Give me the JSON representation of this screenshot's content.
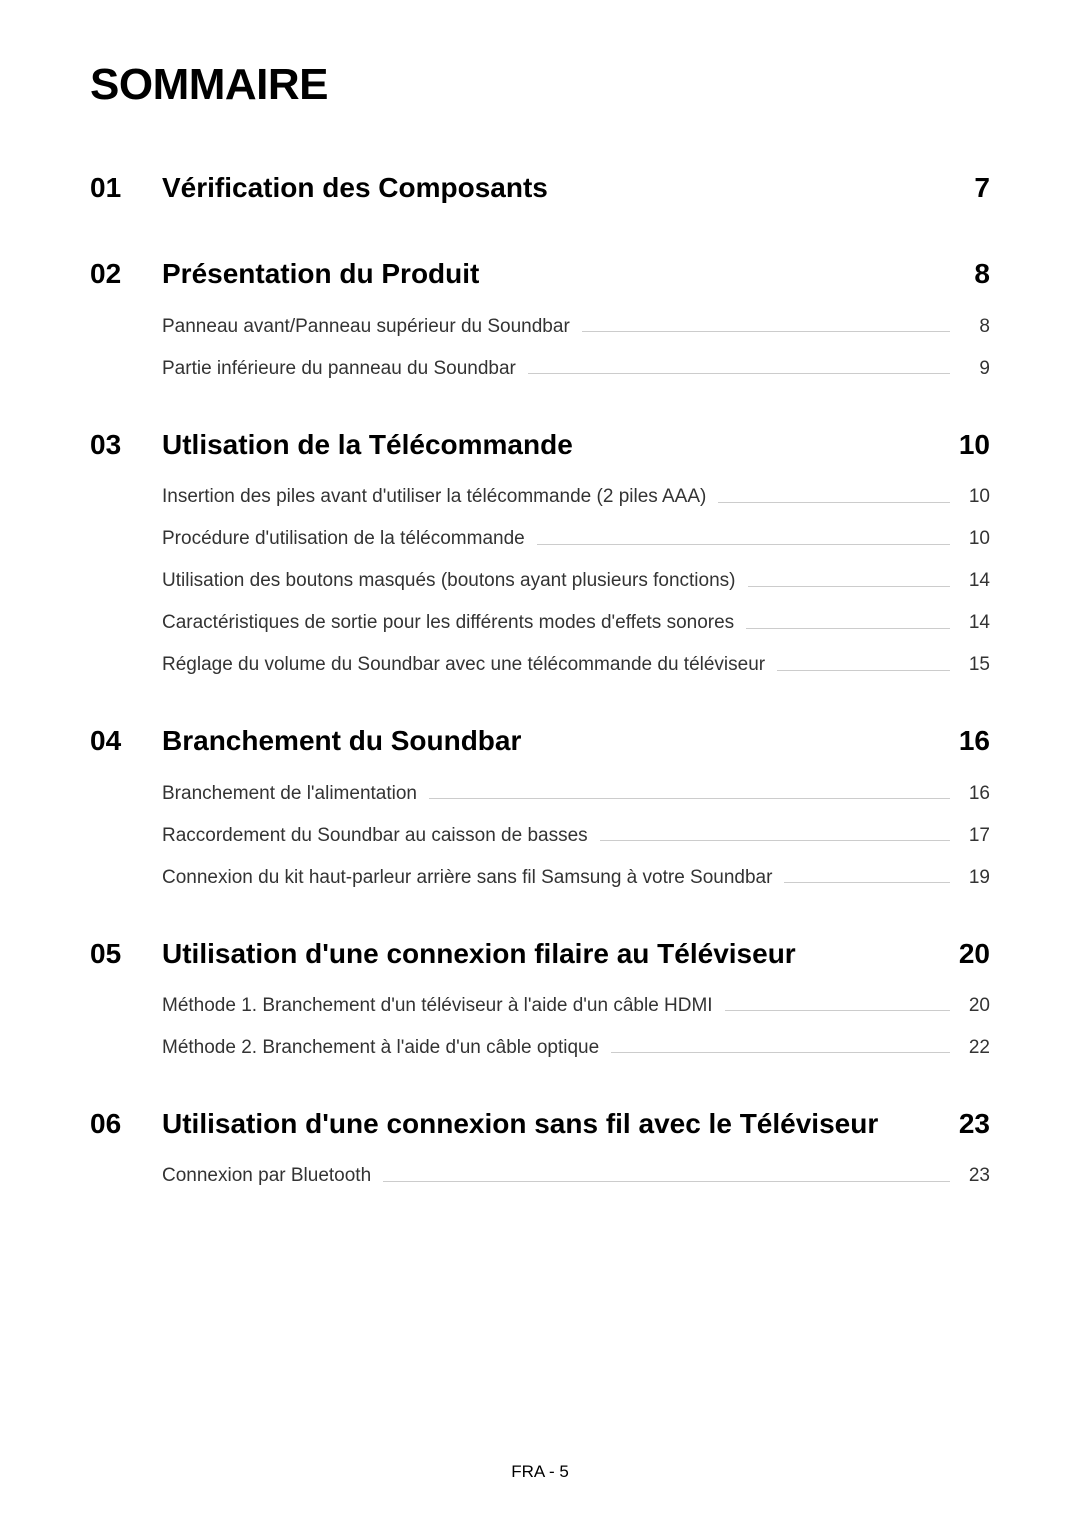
{
  "title": "SOMMAIRE",
  "footer": "FRA - 5",
  "sections": [
    {
      "num": "01",
      "title": "Vérification des Composants",
      "page": "7",
      "subs": []
    },
    {
      "num": "02",
      "title": "Présentation du Produit",
      "page": "8",
      "subs": [
        {
          "title": "Panneau avant/Panneau supérieur du Soundbar",
          "page": "8"
        },
        {
          "title": "Partie inférieure du panneau du Soundbar",
          "page": "9"
        }
      ]
    },
    {
      "num": "03",
      "title": "Utlisation de la Télécommande",
      "page": "10",
      "subs": [
        {
          "title": "Insertion des piles avant d'utiliser la télécommande (2 piles AAA)",
          "page": "10"
        },
        {
          "title": "Procédure d'utilisation de la télécommande",
          "page": "10"
        },
        {
          "title": "Utilisation des boutons masqués (boutons ayant plusieurs fonctions)",
          "page": "14"
        },
        {
          "title": "Caractéristiques de sortie pour les différents modes d'effets sonores",
          "page": "14"
        },
        {
          "title": "Réglage du volume du Soundbar avec une télécommande du téléviseur",
          "page": "15"
        }
      ]
    },
    {
      "num": "04",
      "title": "Branchement du Soundbar",
      "page": "16",
      "subs": [
        {
          "title": "Branchement de l'alimentation",
          "page": "16"
        },
        {
          "title": "Raccordement du Soundbar au caisson de basses",
          "page": "17"
        },
        {
          "title": "Connexion du kit haut-parleur arrière sans fil Samsung à votre Soundbar",
          "page": "19"
        }
      ]
    },
    {
      "num": "05",
      "title": "Utilisation d'une connexion filaire au Téléviseur",
      "page": "20",
      "subs": [
        {
          "title": "Méthode 1. Branchement d'un téléviseur à l'aide d'un câble HDMI",
          "page": "20"
        },
        {
          "title": "Méthode 2. Branchement à l'aide d'un câble optique",
          "page": "22"
        }
      ]
    },
    {
      "num": "06",
      "title": "Utilisation d'une connexion sans fil avec le Téléviseur",
      "page": "23",
      "subs": [
        {
          "title": "Connexion par Bluetooth",
          "page": "23"
        }
      ]
    }
  ]
}
